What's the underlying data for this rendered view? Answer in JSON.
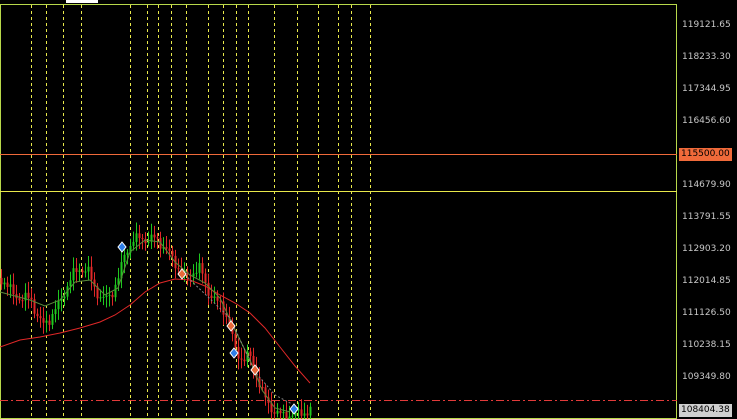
{
  "chart": {
    "price_labels": [
      "119121.65",
      "118233.30",
      "117344.95",
      "116456.60",
      "114679.90",
      "113791.55",
      "112903.20",
      "112014.85",
      "111126.50",
      "110238.15",
      "109349.80"
    ],
    "horizontal_levels": [
      {
        "price": "115500.00",
        "color": "#f06a3a",
        "text_color": "#000000"
      },
      {
        "price": "114679.90",
        "color": "#e8e84a",
        "text_color": null
      },
      {
        "price": "108404.38",
        "color": "#e23a3a",
        "text_color": "#000000",
        "tag_bg": "#cfcfcf",
        "dashed": true
      }
    ],
    "current_price": "108404.38",
    "colors": {
      "background": "#000000",
      "frame": "#b8d84a",
      "vertical_markers": "#e8e84a",
      "bull_candle": "#1ec81e",
      "bear_candle": "#e02828",
      "moving_average_slow": "#e02828",
      "moving_average_fast": "#5a8a3a"
    },
    "icons": [
      "buy-signal-icon",
      "sell-signal-icon"
    ]
  }
}
